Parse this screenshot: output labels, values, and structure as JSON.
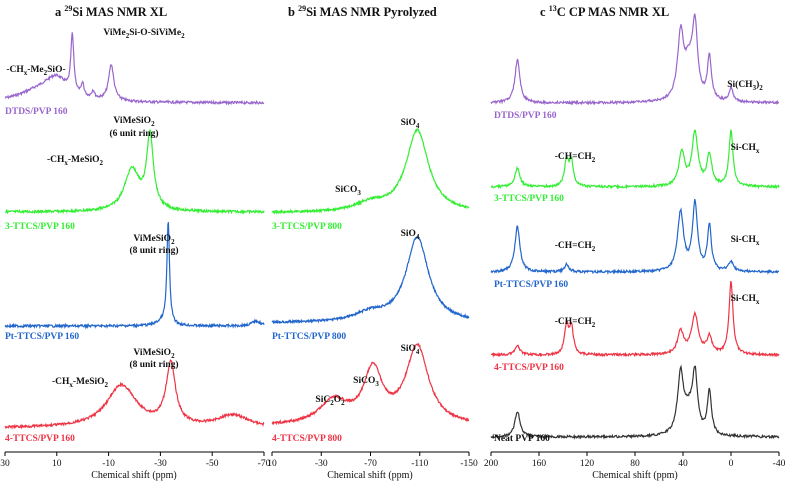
{
  "chart_data": [
    {
      "type": "line",
      "panel": "a",
      "title_letter": "a",
      "title_iso": "29",
      "title_rest": "Si MAS NMR XL",
      "xlabel": "Chemical shift (ppm)",
      "xlim": [
        30,
        -70
      ],
      "xticks": [
        30,
        10,
        -10,
        -30,
        -50,
        -70
      ],
      "tick_labels": [
        "30",
        "10",
        "-10",
        "-30",
        "-50",
        "-70"
      ],
      "series": [
        {
          "name": "DTDS/PVP 160",
          "color": "#9966cc",
          "peaks": [
            [
              16,
              10,
              0.2
            ],
            [
              10,
              5,
              0.3
            ],
            [
              4,
              0.7,
              0.95
            ],
            [
              0,
              0.6,
              0.2
            ],
            [
              -4,
              0.7,
              0.12
            ],
            [
              -11,
              1.2,
              0.6
            ]
          ]
        },
        {
          "name": "3-TTCS/PVP 160",
          "color": "#33ee33",
          "peaks": [
            [
              -19,
              3.5,
              0.48
            ],
            [
              -26,
              1.6,
              0.85
            ]
          ]
        },
        {
          "name": "Pt-TTCS/PVP 160",
          "color": "#2266cc",
          "peaks": [
            [
              -33,
              0.6,
              1.0
            ],
            [
              -31,
              3,
              0.04
            ],
            [
              -67,
              2,
              0.05
            ]
          ]
        },
        {
          "name": "4-TTCS/PVP 160",
          "color": "#ee3344",
          "peaks": [
            [
              -15,
              7,
              0.62
            ],
            [
              -34,
              2.2,
              0.9
            ],
            [
              -58,
              7,
              0.18
            ]
          ]
        }
      ],
      "annotations": {
        "dtds_left": "-CHx-Me2SiO-",
        "dtds_right": "ViMe2Si-O-SiViMe2",
        "ttcs3_left": "-CHx-MeSiO2",
        "ttcs3_right_1": "ViMeSiO2",
        "ttcs3_right_2": "(6 unit ring)",
        "pt_right_1": "ViMeSiO2",
        "pt_right_2": "(8 unit ring)",
        "ttcs4_left": "-CHx-MeSiO2",
        "ttcs4_right_1": "ViMeSiO2",
        "ttcs4_right_2": "(8 unit ring)"
      }
    },
    {
      "type": "line",
      "panel": "b",
      "title_letter": "b",
      "title_iso": "29",
      "title_rest": "Si MAS NMR Pyrolyzed",
      "xlabel": "Chemical shift (ppm)",
      "xlim": [
        10,
        -150
      ],
      "xticks": [
        10,
        -30,
        -70,
        -110,
        -150
      ],
      "tick_labels": [
        "10",
        "-30",
        "-70",
        "-110",
        "-150"
      ],
      "series": [
        {
          "name": "3-TTCS/PVP 800",
          "color": "#33ee33",
          "peaks": [
            [
              -108,
              11,
              1.0
            ],
            [
              -70,
              15,
              0.1
            ]
          ]
        },
        {
          "name": "Pt-TTCS/PVP 800",
          "color": "#2266cc",
          "peaks": [
            [
              -108,
              11,
              1.0
            ],
            [
              -70,
              15,
              0.1
            ]
          ]
        },
        {
          "name": "4-TTCS/PVP 800",
          "color": "#ee3344",
          "peaks": [
            [
              -108,
              11,
              1.0
            ],
            [
              -72,
              9,
              0.68
            ],
            [
              -40,
              14,
              0.3
            ]
          ]
        }
      ],
      "annotations": {
        "ttcs3_sico3": "SiCO3",
        "ttcs3_sio4": "SiO4",
        "pt_sio4": "SiO4",
        "ttcs4_sic2o2": "SiC2O2",
        "ttcs4_sico3": "SiCO3",
        "ttcs4_sio4": "SiO4"
      }
    },
    {
      "type": "line",
      "panel": "c",
      "title_letter": "c",
      "title_iso": "13",
      "title_rest": "C CP MAS NMR XL",
      "xlabel": "Chemical shift (ppm)",
      "xlim": [
        200,
        -40
      ],
      "xticks": [
        200,
        160,
        120,
        80,
        40,
        0,
        -40
      ],
      "tick_labels": [
        "200",
        "160",
        "120",
        "80",
        "40",
        "0",
        "-40"
      ],
      "series": [
        {
          "name": "DTDS/PVP 160",
          "color": "#9966cc",
          "peaks": [
            [
              178,
              2.5,
              0.55
            ],
            [
              42,
              3,
              0.8
            ],
            [
              35,
              5,
              0.45
            ],
            [
              30,
              2.5,
              0.85
            ],
            [
              18,
              2,
              0.55
            ],
            [
              0,
              2,
              0.18
            ]
          ]
        },
        {
          "name": "3-TTCS/PVP 160",
          "color": "#33ee33",
          "peaks": [
            [
              178,
              2.5,
              0.25
            ],
            [
              137,
              2,
              0.36
            ],
            [
              133,
              2,
              0.33
            ],
            [
              41,
              3,
              0.45
            ],
            [
              30,
              3,
              0.72
            ],
            [
              18,
              2.5,
              0.42
            ],
            [
              0,
              2,
              0.75
            ]
          ]
        },
        {
          "name": "Pt-TTCS/PVP 160",
          "color": "#2266cc",
          "peaks": [
            [
              178,
              2.5,
              0.55
            ],
            [
              137,
              2,
              0.1
            ],
            [
              42,
              3,
              0.72
            ],
            [
              30,
              2.5,
              0.82
            ],
            [
              18,
              2,
              0.55
            ],
            [
              0,
              2.5,
              0.12
            ]
          ]
        },
        {
          "name": "4-TTCS/PVP 160",
          "color": "#ee3344",
          "peaks": [
            [
              178,
              2.5,
              0.12
            ],
            [
              137,
              2,
              0.38
            ],
            [
              133,
              2,
              0.35
            ],
            [
              42,
              3,
              0.3
            ],
            [
              30,
              3.5,
              0.52
            ],
            [
              18,
              2.5,
              0.22
            ],
            [
              0,
              2,
              0.95
            ]
          ]
        },
        {
          "name": "Neat PVP 160",
          "color": "#333333",
          "peaks": [
            [
              178,
              2.5,
              0.35
            ],
            [
              42,
              3,
              0.8
            ],
            [
              35,
              5,
              0.3
            ],
            [
              30,
              2.5,
              0.75
            ],
            [
              18,
              2,
              0.6
            ]
          ]
        }
      ],
      "annotations": {
        "dtds_sich3": "Si(CH3)2",
        "ttcs3_vinyl": "-CH=CH2",
        "ttcs3_sichx": "Si-CHx",
        "pt_vinyl": "-CH=CH2",
        "pt_sichx": "Si-CHx",
        "ttcs4_vinyl": "-CH=CH2",
        "ttcs4_sichx": "Si-CHx"
      }
    }
  ],
  "colors": {
    "purple": "#9966cc",
    "green": "#33ee33",
    "blue": "#2266cc",
    "red": "#ee3344",
    "black": "#333333"
  }
}
